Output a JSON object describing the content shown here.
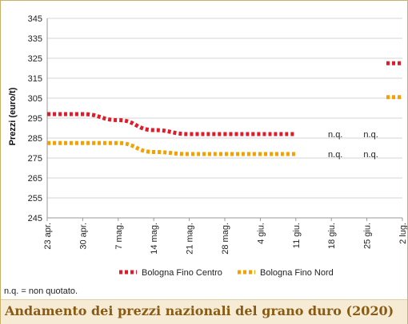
{
  "chart_data": {
    "type": "line",
    "title": "Andamento dei prezzi nazionali del grano duro (2020)",
    "ylabel": "Prezzi (euro/t)",
    "xlabel": "",
    "ylim": [
      245,
      345
    ],
    "yticks": [
      245,
      255,
      265,
      275,
      285,
      295,
      305,
      315,
      325,
      335,
      345
    ],
    "categories": [
      "23 apr.",
      "30 apr.",
      "7 mag.",
      "14 mag.",
      "21 mag.",
      "28 mag.",
      "4 giu.",
      "11 giu.",
      "18 giu.",
      "25 giu.",
      "2 lug."
    ],
    "series": [
      {
        "name": "Bologna Fino Centro",
        "color": "#e01c2a",
        "values": [
          297,
          297,
          294,
          289,
          287,
          287,
          287,
          287,
          null,
          null,
          322.5
        ]
      },
      {
        "name": "Bologna Fino Nord",
        "color": "#f5a000",
        "values": [
          282.5,
          282.5,
          282.5,
          278,
          277,
          277,
          277,
          277,
          null,
          null,
          305.5
        ]
      }
    ],
    "annotations": [
      {
        "text": "n.q.",
        "series": 0,
        "category": "18 giu."
      },
      {
        "text": "n.q.",
        "series": 0,
        "category": "25 giu."
      },
      {
        "text": "n.q.",
        "series": 1,
        "category": "18 giu."
      },
      {
        "text": "n.q.",
        "series": 1,
        "category": "25 giu."
      }
    ],
    "grid": true,
    "legend": "bottom"
  },
  "footnote": "n.q. = non quotato."
}
